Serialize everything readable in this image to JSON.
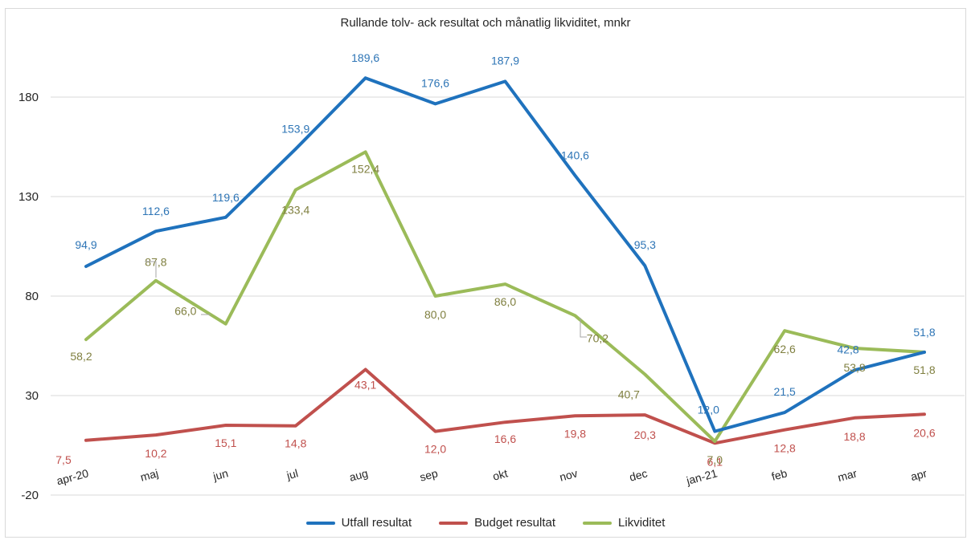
{
  "chart_data": {
    "type": "line",
    "title": "Rullande tolv- ack resultat och månatlig likviditet, mnkr",
    "categories": [
      "apr-20",
      "maj",
      "jun",
      "jul",
      "aug",
      "sep",
      "okt",
      "nov",
      "dec",
      "jan-21",
      "feb",
      "mar",
      "apr"
    ],
    "ylim": [
      -20,
      205
    ],
    "yticks": [
      180,
      130,
      80,
      30,
      -20
    ],
    "grid": true,
    "legend_position": "bottom",
    "series": [
      {
        "name": "Utfall resultat",
        "color": "#1f72bd",
        "values": [
          94.9,
          112.6,
          119.6,
          153.9,
          189.6,
          176.6,
          187.9,
          140.6,
          95.3,
          12.0,
          21.5,
          42.8,
          51.8
        ],
        "labels": [
          "94,9",
          "112,6",
          "119,6",
          "153,9",
          "189,6",
          "176,6",
          "187,9",
          "140,6",
          "95,3",
          "12,0",
          "21,5",
          "42,8",
          "51,8"
        ]
      },
      {
        "name": "Budget resultat",
        "color": "#c0504d",
        "values": [
          7.5,
          10.2,
          15.1,
          14.8,
          43.1,
          12.0,
          16.6,
          19.8,
          20.3,
          6.1,
          12.8,
          18.8,
          20.6
        ],
        "labels": [
          "7,5",
          "10,2",
          "15,1",
          "14,8",
          "43,1",
          "12,0",
          "16,6",
          "19,8",
          "20,3",
          "6,1",
          "12,8",
          "18,8",
          "20,6"
        ]
      },
      {
        "name": "Likviditet",
        "color": "#9bbb59",
        "values": [
          58.2,
          87.8,
          66.0,
          133.4,
          152.4,
          80.0,
          86.0,
          70.2,
          40.7,
          7.0,
          62.6,
          53.8,
          51.8
        ],
        "labels": [
          "58,2",
          "87,8",
          "66,0",
          "133,4",
          "152,4",
          "80,0",
          "86,0",
          "70,2",
          "40,7",
          "7,0",
          "62,6",
          "53,8",
          "51,8"
        ]
      }
    ]
  }
}
